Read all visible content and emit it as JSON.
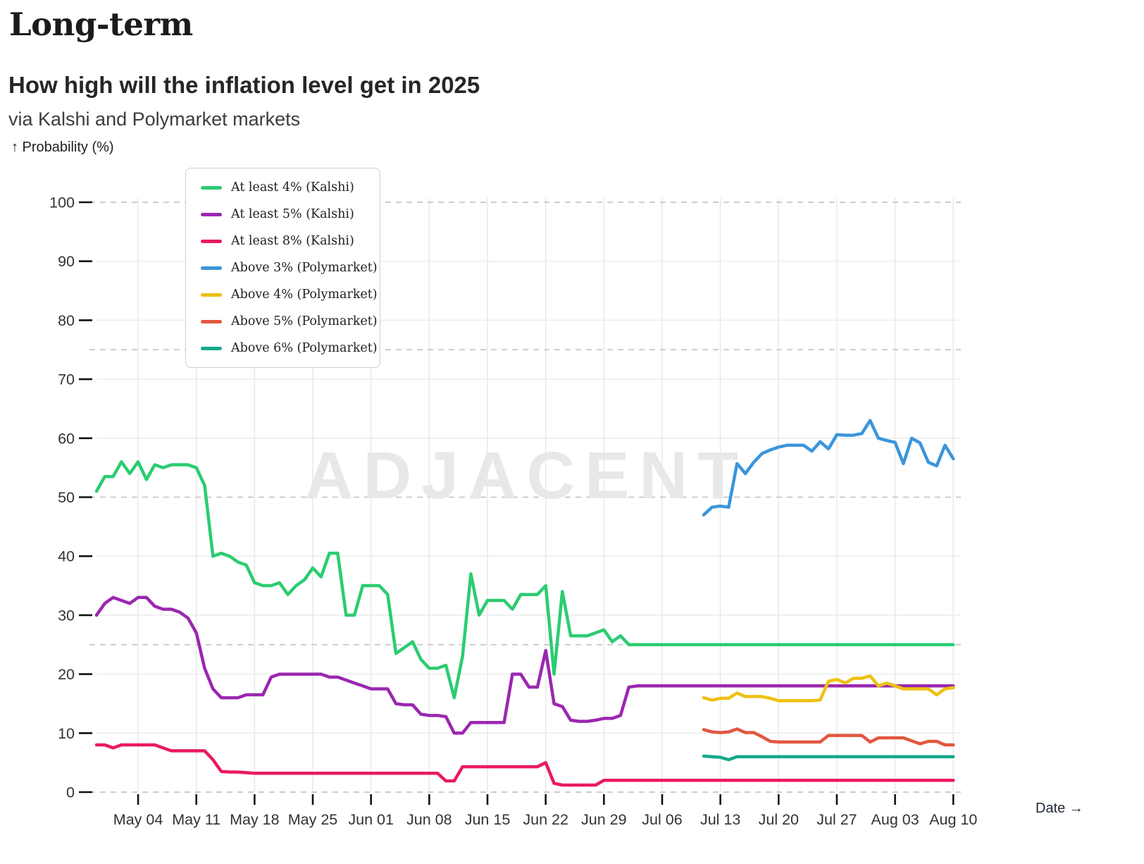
{
  "page": {
    "kicker": "Long-term",
    "title": "How high will the inflation level get in 2025",
    "subtitle": "via Kalshi and Polymarket markets",
    "y_axis_label": "↑ Probability (%)",
    "date_label": "Date →"
  },
  "chart_data": {
    "type": "line",
    "title": "How high will the inflation level get in 2025",
    "source": "via Kalshi and Polymarket markets",
    "xlabel": "Date",
    "ylabel": "Probability (%)",
    "watermark": "ADJACENT",
    "ylim": [
      0,
      100
    ],
    "y_ticks": [
      0,
      10,
      20,
      30,
      40,
      50,
      60,
      70,
      80,
      90,
      100
    ],
    "dashed_gridlines_y": [
      0,
      25,
      50,
      75,
      100
    ],
    "grid": true,
    "legend_position": "top-left",
    "x_start_date": "Apr 29",
    "x_domain_days": [
      0,
      103.4
    ],
    "x_tick_days": [
      5,
      12,
      19,
      26,
      33,
      40,
      47,
      54,
      61,
      68,
      75,
      82,
      89,
      96,
      103
    ],
    "x_tick_labels": [
      "May 04",
      "May 11",
      "May 18",
      "May 25",
      "Jun 01",
      "Jun 08",
      "Jun 15",
      "Jun 22",
      "Jun 29",
      "Jul 06",
      "Jul 13",
      "Jul 20",
      "Jul 27",
      "Aug 03",
      "Aug 10"
    ],
    "series": [
      {
        "name": "At least 4% (Kalshi)",
        "color": "#2bcc71",
        "start_day": 0,
        "values": [
          51,
          53.5,
          53.5,
          56,
          54,
          56,
          53,
          55.5,
          55,
          55.5,
          55.5,
          55.5,
          55,
          52,
          40,
          40.5,
          40,
          39,
          38.5,
          35.5,
          35,
          35,
          35.5,
          33.5,
          35,
          36,
          38,
          36.5,
          40.5,
          40.5,
          30,
          30,
          35,
          35,
          35,
          33.5,
          23.5,
          24.5,
          25.5,
          22.5,
          21,
          21,
          21.5,
          16,
          23,
          37,
          30,
          32.5,
          32.5,
          32.5,
          31,
          33.5,
          33.5,
          33.5,
          35,
          20,
          34,
          26.5,
          26.5,
          26.5,
          27,
          27.5,
          25.5,
          26.5,
          25,
          25,
          25,
          25,
          25,
          25,
          25,
          25,
          25,
          25,
          25,
          25,
          25,
          25,
          25,
          25,
          25,
          25,
          25,
          25,
          25,
          25,
          25,
          25,
          25,
          25,
          25,
          25,
          25,
          25,
          25,
          25,
          25,
          25,
          25,
          25,
          25,
          25,
          25,
          25
        ]
      },
      {
        "name": "At least 5% (Kalshi)",
        "color": "#9b27b0",
        "start_day": 0,
        "values": [
          30,
          32,
          33,
          32.5,
          32,
          33,
          33,
          31.5,
          31,
          31,
          30.5,
          29.5,
          27,
          21,
          17.5,
          16,
          16,
          16,
          16.5,
          16.5,
          16.5,
          19.5,
          20,
          20,
          20,
          20,
          20,
          20,
          19.5,
          19.5,
          19,
          18.5,
          18,
          17.5,
          17.5,
          17.5,
          15,
          14.8,
          14.8,
          13.2,
          13,
          13,
          12.8,
          10,
          10,
          11.8,
          11.8,
          11.8,
          11.8,
          11.8,
          20,
          20,
          17.8,
          17.8,
          24,
          15,
          14.5,
          12.2,
          12,
          12,
          12.2,
          12.5,
          12.5,
          13,
          17.8,
          18,
          18,
          18,
          18,
          18,
          18,
          18,
          18,
          18,
          18,
          18,
          18,
          18,
          18,
          18,
          18,
          18,
          18,
          18,
          18,
          18,
          18,
          18,
          18,
          18,
          18,
          18,
          18,
          18,
          18,
          18,
          18,
          18,
          18,
          18,
          18,
          18,
          18,
          18
        ]
      },
      {
        "name": "At least 8% (Kalshi)",
        "color": "#ea1a5e",
        "start_day": 0,
        "values": [
          8,
          8,
          7.5,
          8,
          8,
          8,
          8,
          8,
          7.5,
          7,
          7,
          7,
          7,
          7,
          5.5,
          3.5,
          3.4,
          3.4,
          3.3,
          3.2,
          3.2,
          3.2,
          3.2,
          3.2,
          3.2,
          3.2,
          3.2,
          3.2,
          3.2,
          3.2,
          3.2,
          3.2,
          3.2,
          3.2,
          3.2,
          3.2,
          3.2,
          3.2,
          3.2,
          3.2,
          3.2,
          3.2,
          1.9,
          1.9,
          4.3,
          4.3,
          4.3,
          4.3,
          4.3,
          4.3,
          4.3,
          4.3,
          4.3,
          4.3,
          5,
          1.5,
          1.2,
          1.2,
          1.2,
          1.2,
          1.2,
          2,
          2,
          2,
          2,
          2,
          2,
          2,
          2,
          2,
          2,
          2,
          2,
          2,
          2,
          2,
          2,
          2,
          2,
          2,
          2,
          2,
          2,
          2,
          2,
          2,
          2,
          2,
          2,
          2,
          2,
          2,
          2,
          2,
          2,
          2,
          2,
          2,
          2,
          2,
          2,
          2,
          2,
          2
        ]
      },
      {
        "name": "Above 3% (Polymarket)",
        "color": "#3b95da",
        "start_day": 73,
        "values": [
          47,
          48.3,
          48.5,
          48.3,
          55.7,
          54,
          55.9,
          57.4,
          58,
          58.5,
          58.8,
          58.8,
          58.8,
          57.8,
          59.4,
          58.2,
          60.6,
          60.5,
          60.5,
          60.8,
          63,
          60,
          59.6,
          59.3,
          55.7,
          60,
          59.2,
          55.9,
          55.3,
          58.8,
          56.5
        ]
      },
      {
        "name": "Above 4% (Polymarket)",
        "color": "#edc111",
        "start_day": 73,
        "values": [
          16,
          15.6,
          15.9,
          15.9,
          16.8,
          16.2,
          16.2,
          16.2,
          15.9,
          15.5,
          15.5,
          15.5,
          15.5,
          15.5,
          15.6,
          18.8,
          19.1,
          18.5,
          19.3,
          19.3,
          19.7,
          18,
          18.5,
          18,
          17.5,
          17.5,
          17.5,
          17.5,
          16.5,
          17.5,
          17.7
        ]
      },
      {
        "name": "Above 5% (Polymarket)",
        "color": "#e25740",
        "start_day": 73,
        "values": [
          10.6,
          10.2,
          10.1,
          10.2,
          10.7,
          10.1,
          10.1,
          9.4,
          8.6,
          8.5,
          8.5,
          8.5,
          8.5,
          8.5,
          8.5,
          9.6,
          9.6,
          9.6,
          9.6,
          9.6,
          8.5,
          9.2,
          9.2,
          9.2,
          9.2,
          8.7,
          8.2,
          8.6,
          8.6,
          8,
          8
        ]
      },
      {
        "name": "Above 6% (Polymarket)",
        "color": "#16a98a",
        "start_day": 73,
        "values": [
          6.1,
          6,
          5.9,
          5.5,
          6,
          6,
          6,
          6,
          6,
          6,
          6,
          6,
          6,
          6,
          6,
          6,
          6,
          6,
          6,
          6,
          6,
          6,
          6,
          6,
          6,
          6,
          6,
          6,
          6,
          6,
          6
        ]
      }
    ]
  }
}
